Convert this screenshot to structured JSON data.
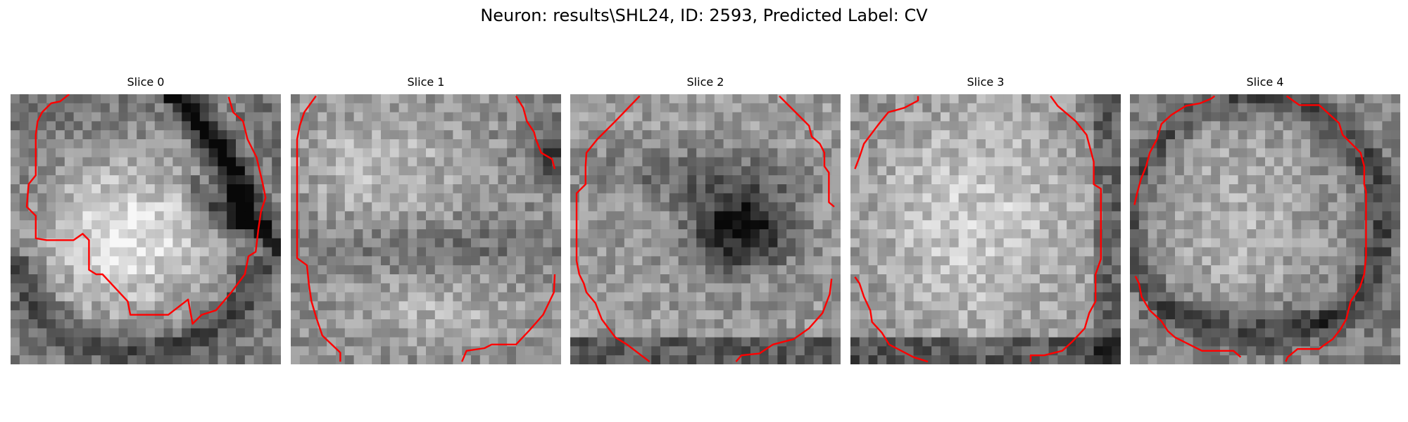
{
  "figure": {
    "title": "Neuron: results\\SHL24, ID: 2593, Predicted Label: CV"
  },
  "colors": {
    "contour": "#ff0000",
    "background": "#ffffff",
    "colormap": "grayscale"
  },
  "panels": [
    {
      "title": "Slice 0",
      "image": "grayscale-microscopy-patch",
      "overlay": "red-cell-contour"
    },
    {
      "title": "Slice 1",
      "image": "grayscale-microscopy-patch",
      "overlay": "red-cell-contour"
    },
    {
      "title": "Slice 2",
      "image": "grayscale-microscopy-patch",
      "overlay": "red-cell-contour"
    },
    {
      "title": "Slice 3",
      "image": "grayscale-microscopy-patch",
      "overlay": "red-cell-contour"
    },
    {
      "title": "Slice 4",
      "image": "grayscale-microscopy-patch",
      "overlay": "red-cell-contour"
    }
  ]
}
